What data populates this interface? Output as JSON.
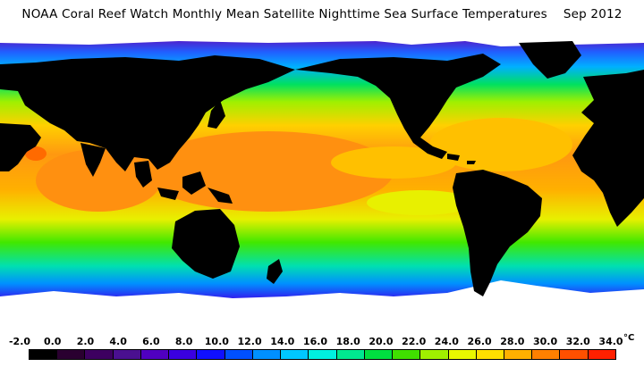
{
  "title": "NOAA Coral Reef Watch Monthly Mean Satellite Nighttime Sea Surface Temperatures    Sep 2012",
  "scale": {
    "ticks": [
      "-2.0",
      "0.0",
      "2.0",
      "4.0",
      "6.0",
      "8.0",
      "10.0",
      "12.0",
      "14.0",
      "16.0",
      "18.0",
      "20.0",
      "22.0",
      "24.0",
      "26.0",
      "28.0",
      "30.0",
      "32.0",
      "34.0"
    ],
    "unit": "°C",
    "colors": [
      "#000000",
      "#2a0030",
      "#3d0060",
      "#4a1090",
      "#5000c0",
      "#3a00e0",
      "#1010ff",
      "#0050ff",
      "#0090ff",
      "#00c8ff",
      "#00f0e0",
      "#00e890",
      "#00e040",
      "#40e000",
      "#a0f000",
      "#e8f800",
      "#ffe000",
      "#ffb000",
      "#ff8000",
      "#ff5000",
      "#ff2000"
    ]
  },
  "palette": {
    "land": "#000000",
    "ice": "#ffffff",
    "warm": "#ff9010",
    "hot": "#ff6a00",
    "tropic": "#ffc000",
    "subtropic": "#e8f000",
    "temperate": "#40e800",
    "cool": "#00d0ff",
    "cold": "#2060ff",
    "polar": "#5a10c0",
    "deep-polar": "#6a00b0"
  }
}
